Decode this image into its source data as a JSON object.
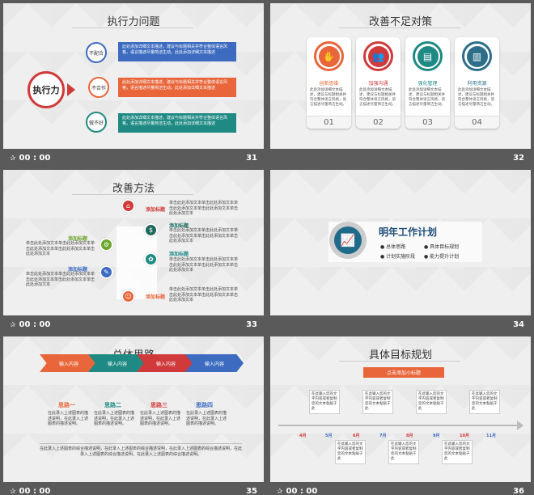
{
  "colors": {
    "blue": "#3c6bc0",
    "orange": "#e8663a",
    "teal": "#1e8a83",
    "red": "#d03a3a",
    "green": "#6aa52c",
    "darkteal": "#2d6e8a"
  },
  "slides": [
    {
      "number": "31",
      "time": "00 : 00",
      "title": "执行力问题",
      "center": "执行力",
      "items": [
        {
          "label": "不配合",
          "text": "此处添加详细文本描述，建议与标题相关并符合整体语言风格，语言描述尽量简洁生动。此处添加详细文本描述"
        },
        {
          "label": "不合作",
          "text": "此处添加详细文本描述，建议与标题相关并符合整体语言风格，语言描述尽量简洁生动。此处添加详细文本描述"
        },
        {
          "label": "做不好",
          "text": "此处添加详细文本描述，建议与标题相关并符合整体语言风格，语言描述尽量简洁生动。此处添加详细文本描述"
        }
      ]
    },
    {
      "number": "32",
      "time": "00 : 00",
      "title": "改善不足对策",
      "cards": [
        {
          "label": "创新思维",
          "num": "01",
          "desc": "此处添加详细文本描述，建议与标题相关并符合整体语言风格，语言描述尽量简洁生动。"
        },
        {
          "label": "加强沟通",
          "num": "02",
          "desc": "此处添加详细文本描述，建议与标题相关并符合整体语言风格，语言描述尽量简洁生动。"
        },
        {
          "label": "强化管理",
          "num": "03",
          "desc": "此处添加详细文本描述，建议与标题相关并符合整体语言风格，语言描述尽量简洁生动。"
        },
        {
          "label": "利用资源",
          "num": "04",
          "desc": "此处添加详细文本描述，建议与标题相关并符合整体语言风格，语言描述尽量简洁生动。"
        }
      ]
    },
    {
      "number": "33",
      "time": "00 : 00",
      "title": "改善方法",
      "heading": "添加标题",
      "body": "单击此处添加文本单击此处添加文本单击此处添加文本单击此处添加文本单击此处添加文本"
    },
    {
      "number": "34",
      "time": "",
      "title": "明年工作计划",
      "points": [
        "总体思路",
        "具体目标规划",
        "计划实施阶段",
        "能力提升计划"
      ]
    },
    {
      "number": "35",
      "time": "00 : 00",
      "title": "总体思路",
      "chevron_label": "输入内容",
      "ideas": [
        "思路一",
        "思路二",
        "思路三",
        "思路四"
      ],
      "idea_text": "在此录入上述图表的描述说明，在此录入上述图表的描述说明。",
      "footer_text": "在此录入上述图表的综合描述说明，在此录入上述图表的综合描述说明，在此录入上述图表的综合描述说明，在此录入上述图表的综合描述说明，在此录入上述图表的综合描述说明。"
    },
    {
      "number": "36",
      "time": "00 : 00",
      "title": "具体目标规划",
      "button": "点击添加小标题",
      "months": [
        "4月",
        "5月",
        "6月",
        "7月",
        "8月",
        "9月",
        "10月",
        "11月"
      ],
      "note": "在此输入您的文字内容或者复制您的文本粘贴于此"
    }
  ]
}
